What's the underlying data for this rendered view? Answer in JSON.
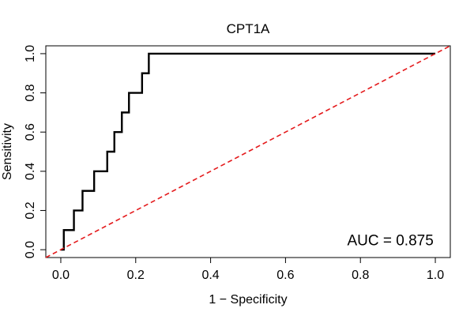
{
  "chart_data": {
    "type": "line",
    "title": "CPT1A",
    "xlabel": "1 − Specificity",
    "ylabel": "Sensitivity",
    "xlim": [
      -0.04,
      1.04
    ],
    "ylim": [
      -0.04,
      1.04
    ],
    "xticks": [
      0.0,
      0.2,
      0.4,
      0.6,
      0.8,
      1.0
    ],
    "yticks": [
      0.0,
      0.2,
      0.4,
      0.6,
      0.8,
      1.0
    ],
    "xtick_labels": [
      "0.0",
      "0.2",
      "0.4",
      "0.6",
      "0.8",
      "1.0"
    ],
    "ytick_labels": [
      "0.0",
      "0.2",
      "0.4",
      "0.6",
      "0.8",
      "1.0"
    ],
    "grid": false,
    "series": [
      {
        "color": "#000000",
        "style": "solid",
        "step": true,
        "x": [
          0.0,
          0.008,
          0.008,
          0.035,
          0.035,
          0.058,
          0.058,
          0.089,
          0.089,
          0.124,
          0.124,
          0.143,
          0.143,
          0.163,
          0.163,
          0.182,
          0.182,
          0.217,
          0.217,
          0.235,
          0.235,
          1.0
        ],
        "y": [
          0.0,
          0.0,
          0.1,
          0.1,
          0.2,
          0.2,
          0.3,
          0.3,
          0.4,
          0.4,
          0.5,
          0.5,
          0.6,
          0.6,
          0.7,
          0.7,
          0.8,
          0.8,
          0.9,
          0.9,
          1.0,
          1.0
        ]
      },
      {
        "color": "#e41a1c",
        "style": "dashed",
        "x": [
          -0.04,
          1.04
        ],
        "y": [
          -0.04,
          1.04
        ]
      }
    ],
    "annotations": [
      {
        "text": "AUC = 0.875",
        "x": 0.88,
        "y": 0.05
      }
    ]
  }
}
